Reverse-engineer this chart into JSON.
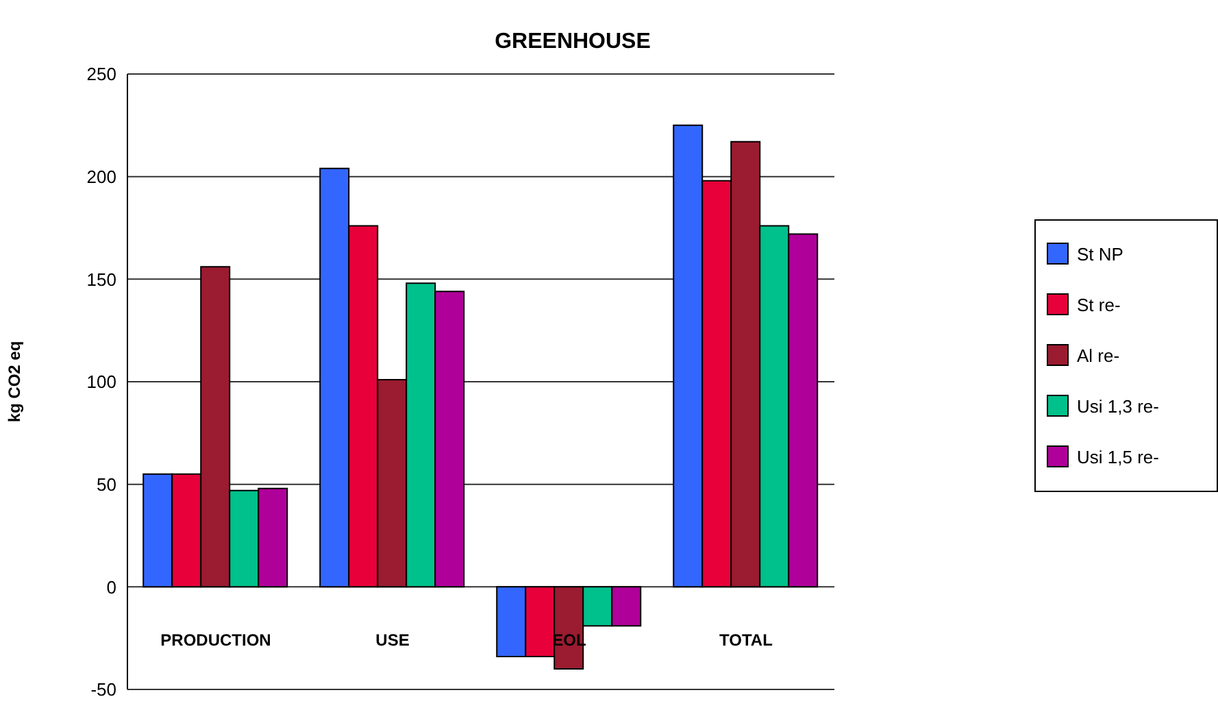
{
  "chart_data": {
    "type": "bar",
    "title": "GREENHOUSE",
    "ylabel": "kg CO2 eq",
    "categories": [
      "PRODUCTION",
      "USE",
      "EOL",
      "TOTAL"
    ],
    "series": [
      {
        "name": "St NP",
        "color": "#3366ff",
        "values": [
          55,
          204,
          -34,
          225
        ]
      },
      {
        "name": "St re-",
        "color": "#e8003a",
        "values": [
          55,
          176,
          -34,
          198
        ]
      },
      {
        "name": "Al re-",
        "color": "#9b1b30",
        "values": [
          156,
          101,
          -40,
          217
        ]
      },
      {
        "name": "Usi 1,3 re-",
        "color": "#00c08c",
        "values": [
          47,
          148,
          -19,
          176
        ]
      },
      {
        "name": "Usi 1,5 re-",
        "color": "#b0009a",
        "values": [
          48,
          144,
          -19,
          172
        ]
      }
    ],
    "ylim": [
      -50,
      250
    ],
    "yticks": [
      -50,
      0,
      50,
      100,
      150,
      200,
      250
    ],
    "grid": "y",
    "legend": "right"
  }
}
